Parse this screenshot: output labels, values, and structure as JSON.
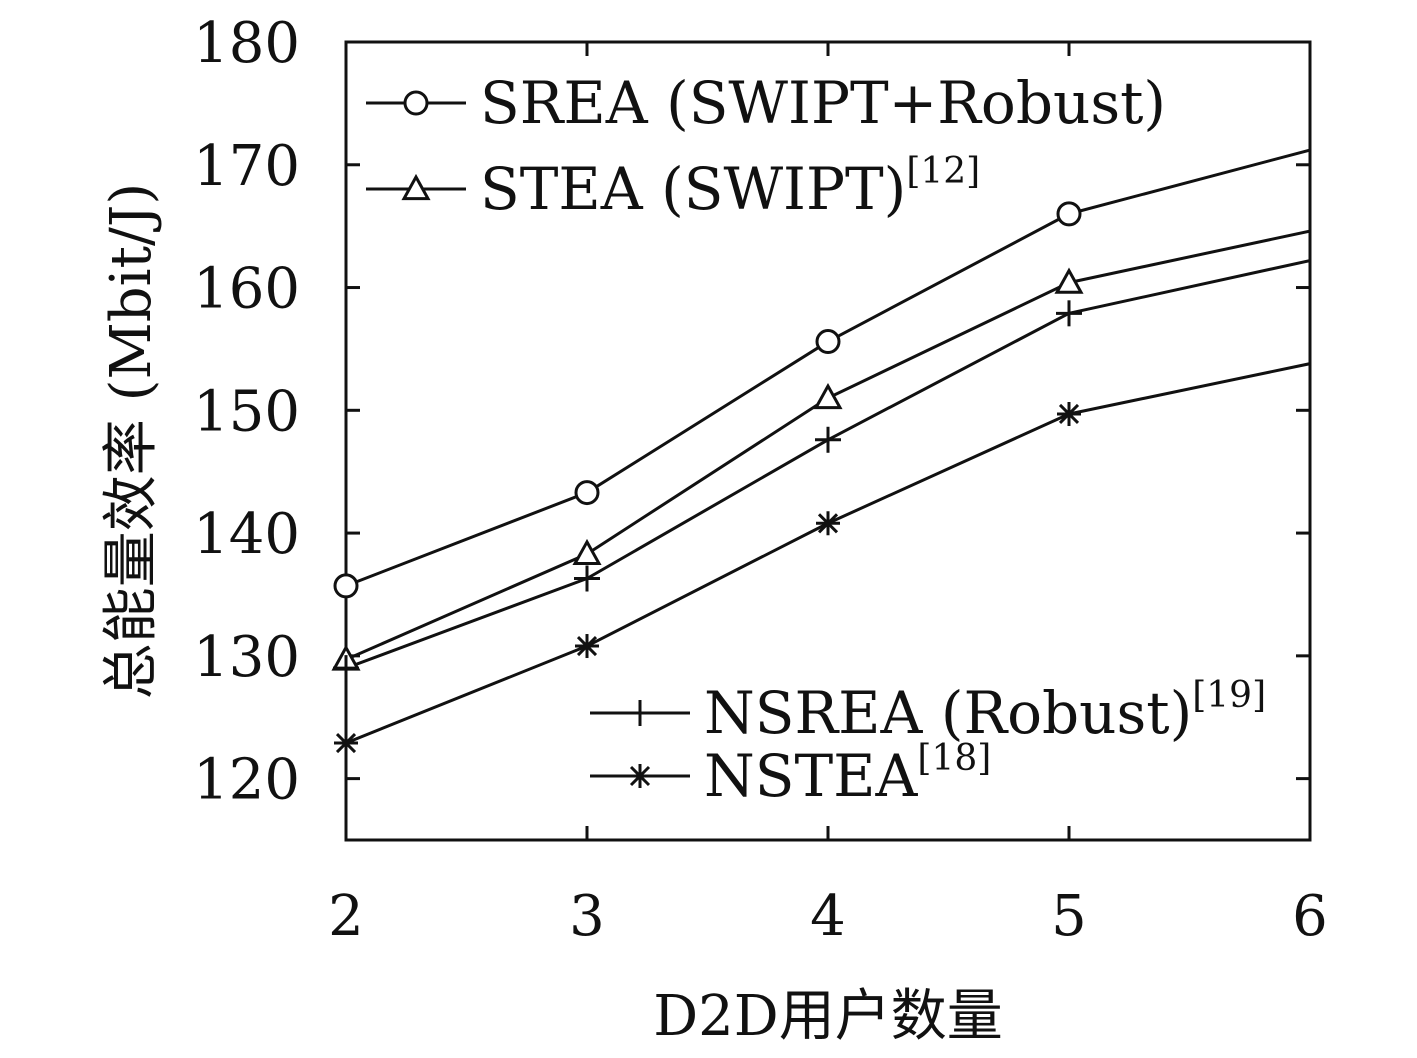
{
  "chart_data": {
    "type": "line",
    "xlabel": "D2D用户数量",
    "ylabel": "总能量效率 (Mbit/J)",
    "xlim": [
      2,
      6
    ],
    "ylim": [
      115,
      180
    ],
    "x_ticks": [
      "2",
      "3",
      "4",
      "5",
      "6"
    ],
    "y_ticks": [
      "120",
      "130",
      "140",
      "150",
      "160",
      "170",
      "180"
    ],
    "x": [
      2,
      3,
      4,
      5,
      6
    ],
    "grid": false,
    "series": [
      {
        "name": "SREA (SWIPT+Robust)",
        "ref": "",
        "marker": "circle",
        "values": [
          135.7,
          143.3,
          155.6,
          166.0,
          171.2
        ]
      },
      {
        "name": "STEA (SWIPT)",
        "ref": "[12]",
        "marker": "triangle",
        "values": [
          129.7,
          138.3,
          151.0,
          160.4,
          164.6
        ]
      },
      {
        "name": "NSREA (Robust)",
        "ref": "[19]",
        "marker": "plus",
        "values": [
          129.0,
          136.3,
          147.6,
          157.9,
          162.2
        ]
      },
      {
        "name": "NSTEA",
        "ref": "[18]",
        "marker": "star",
        "values": [
          122.9,
          130.8,
          140.8,
          149.7,
          153.8
        ]
      }
    ],
    "colors": {
      "line": "#111111",
      "background": "#ffffff"
    }
  }
}
